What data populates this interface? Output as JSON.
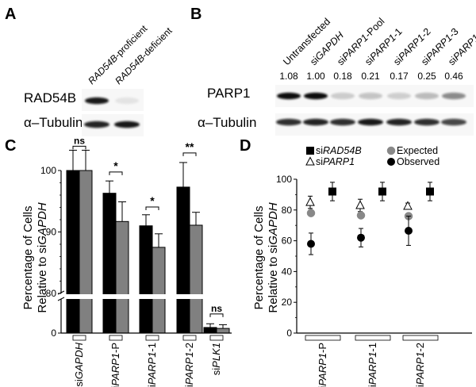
{
  "panels": {
    "A": {
      "letter": "A",
      "lanes": [
        "RAD54B-proficient",
        "RAD54B-deficient"
      ],
      "lane_prefix": "RAD54B",
      "lane_suffixes": [
        "-proficient",
        "-deficient"
      ],
      "rows": [
        "RAD54B",
        "α–Tubulin"
      ],
      "band_intensity": {
        "RAD54B": [
          0.95,
          0.05
        ],
        "α–Tubulin": [
          0.9,
          0.95
        ]
      }
    },
    "B": {
      "letter": "B",
      "lanes": [
        {
          "prefix": "",
          "italic": "Untransfected",
          "suffix": "",
          "plain": true
        },
        {
          "prefix": "si",
          "italic": "GAPDH",
          "suffix": ""
        },
        {
          "prefix": "si",
          "italic": "PARP1",
          "suffix": "-Pool"
        },
        {
          "prefix": "si",
          "italic": "PARP1",
          "suffix": "-1"
        },
        {
          "prefix": "si",
          "italic": "PARP1",
          "suffix": "-2"
        },
        {
          "prefix": "si",
          "italic": "PARP1",
          "suffix": "-3"
        },
        {
          "prefix": "si",
          "italic": "PARP1",
          "suffix": "-4"
        }
      ],
      "quantification": [
        "1.08",
        "1.00",
        "0.18",
        "0.21",
        "0.17",
        "0.25",
        "0.46"
      ],
      "rows": [
        "PARP1",
        "α–Tubulin"
      ],
      "band_intensity": {
        "PARP1": [
          1.08,
          1.0,
          0.18,
          0.21,
          0.17,
          0.25,
          0.46
        ],
        "α–Tubulin": [
          0.85,
          0.9,
          0.85,
          0.95,
          0.9,
          0.85,
          0.75
        ]
      }
    }
  },
  "chart_data": [
    {
      "panel": "C",
      "type": "bar",
      "ylabel_line1": "Percentage of Cells",
      "ylabel_line2_prefix": "Relative to si",
      "ylabel_line2_italic": "GAPDH",
      "categories": [
        {
          "prefix": "si",
          "italic": "GAPDH",
          "suffix": ""
        },
        {
          "prefix": "si",
          "italic": "PARP1",
          "suffix": "-P"
        },
        {
          "prefix": "si",
          "italic": "PARP1",
          "suffix": "-1"
        },
        {
          "prefix": "si",
          "italic": "PARP1",
          "suffix": "-2"
        },
        {
          "prefix": "si",
          "italic": "PLK1",
          "suffix": ""
        }
      ],
      "series": [
        {
          "color": "#000000",
          "values": [
            100,
            96.3,
            91.0,
            97.3,
            3
          ],
          "errors": [
            3.3,
            2.0,
            1.8,
            4.0,
            2
          ]
        },
        {
          "color": "#808080",
          "values": [
            100,
            91.7,
            87.5,
            91.1,
            2.5
          ],
          "errors": [
            3.3,
            3.2,
            2.2,
            2.1,
            2
          ]
        }
      ],
      "yticks": [
        "100",
        "90",
        "80",
        "0"
      ],
      "upper_range": [
        80,
        100
      ],
      "lower_range": [
        0,
        20
      ],
      "significance": [
        "ns",
        "*",
        "*",
        "**",
        "ns"
      ],
      "colors": {
        "series1": "#000000",
        "series2": "#808080"
      }
    },
    {
      "panel": "D",
      "type": "scatter",
      "ylabel_line1": "Percentage of Cells",
      "ylabel_line2_prefix": "Relative to si",
      "ylabel_line2_italic": "GAPDH",
      "categories": [
        {
          "prefix": "si",
          "italic": "PARP1",
          "suffix": "-P"
        },
        {
          "prefix": "si",
          "italic": "PARP1",
          "suffix": "-1"
        },
        {
          "prefix": "si",
          "italic": "PARP1",
          "suffix": "-2"
        }
      ],
      "yticks": [
        "100",
        "80",
        "60",
        "40",
        "20",
        "0"
      ],
      "ylim": [
        0,
        100
      ],
      "legend": [
        {
          "marker": "square",
          "prefix": "si",
          "italic": "RAD54B",
          "suffix": ""
        },
        {
          "marker": "circle-gray",
          "prefix": "",
          "italic": "",
          "suffix": "Expected"
        },
        {
          "marker": "triangle",
          "prefix": "si",
          "italic": "PARP1",
          "suffix": ""
        },
        {
          "marker": "circle-black",
          "prefix": "",
          "italic": "",
          "suffix": "Observed"
        }
      ],
      "series": [
        {
          "marker": "triangle",
          "values": [
            85,
            83,
            82.5
          ],
          "errors": [
            4,
            4,
            2
          ]
        },
        {
          "marker": "square",
          "values": [
            92,
            92,
            92
          ],
          "errors": [
            6,
            6,
            6
          ]
        },
        {
          "marker": "circle-gray",
          "values": [
            78,
            76.5,
            76
          ],
          "errors": [
            0,
            0,
            0
          ]
        },
        {
          "marker": "circle-black",
          "values": [
            58,
            62,
            66.5
          ],
          "errors": [
            7,
            6,
            9.5
          ]
        }
      ]
    }
  ]
}
